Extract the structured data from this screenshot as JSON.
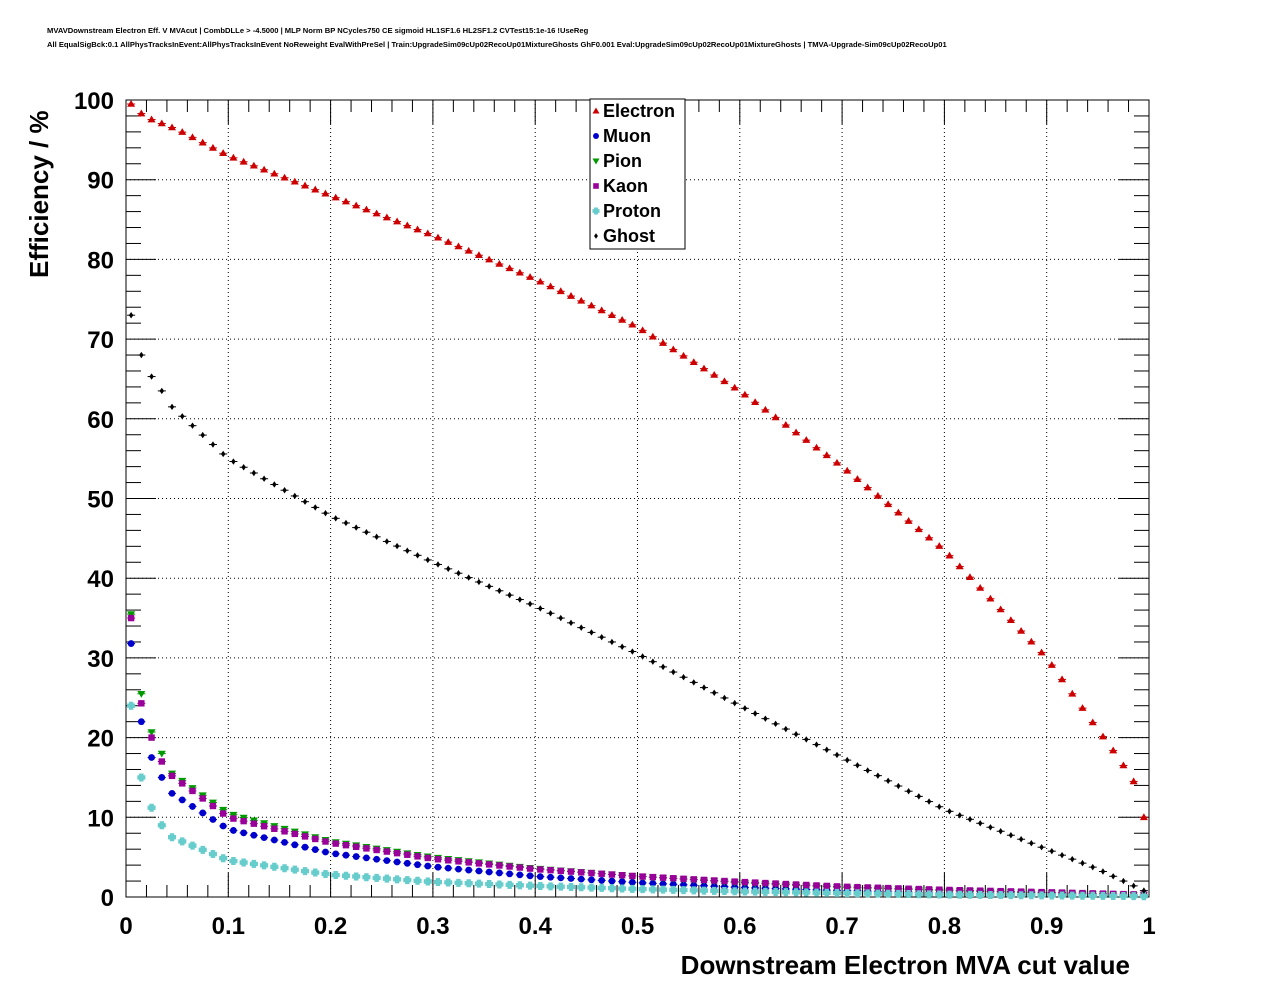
{
  "header": {
    "line1": "MVAVDownstream Electron Eff. V MVAcut | CombDLLe > -4.5000 | MLP Norm BP NCycles750 CE sigmoid HL1SF1.6 HL2SF1.2 CVTest15:1e-16 !UseReg",
    "line2": "All EqualSigBck:0.1 AllPhysTracksInEvent:AllPhysTracksInEvent NoReweight EvalWithPreSel | Train:UpgradeSim09cUp02RecoUp01MixtureGhosts GhF0.001 Eval:UpgradeSim09cUp02RecoUp01MixtureGhosts | TMVA-Upgrade-Sim09cUp02RecoUp01"
  },
  "chart_data": {
    "type": "scatter",
    "title": "MVAVDownstream Electron Eff. V MVAcut",
    "xlabel": "Downstream Electron MVA cut value",
    "ylabel": "Efficiency / %",
    "xlim": [
      0,
      1
    ],
    "ylim": [
      0,
      100
    ],
    "grid": true,
    "legend_position": "top-center",
    "x_ticks": [
      "0",
      "0.1",
      "0.2",
      "0.3",
      "0.4",
      "0.5",
      "0.6",
      "0.7",
      "0.8",
      "0.9",
      "1"
    ],
    "y_ticks": [
      "0",
      "10",
      "20",
      "30",
      "40",
      "50",
      "60",
      "70",
      "80",
      "90",
      "100"
    ],
    "bin_width": 0.01,
    "x_first": 0.005,
    "series": [
      {
        "name": "Electron",
        "color": "#cc0000",
        "marker": "triangle-up",
        "anchors": [
          [
            0.005,
            99.5
          ],
          [
            0.01,
            98.8
          ],
          [
            0.02,
            97.8
          ],
          [
            0.05,
            96.3
          ],
          [
            0.1,
            93.0
          ],
          [
            0.2,
            88.0
          ],
          [
            0.3,
            83.0
          ],
          [
            0.4,
            77.5
          ],
          [
            0.5,
            71.5
          ],
          [
            0.6,
            63.5
          ],
          [
            0.7,
            54.0
          ],
          [
            0.8,
            43.5
          ],
          [
            0.9,
            30.0
          ],
          [
            0.95,
            21.0
          ],
          [
            0.97,
            17.5
          ],
          [
            0.985,
            14.5
          ],
          [
            0.995,
            10.0
          ]
        ]
      },
      {
        "name": "Muon",
        "color": "#0000cc",
        "marker": "circle",
        "anchors": [
          [
            0.005,
            31.8
          ],
          [
            0.015,
            22.0
          ],
          [
            0.025,
            17.5
          ],
          [
            0.035,
            15.0
          ],
          [
            0.045,
            13.0
          ],
          [
            0.1,
            8.5
          ],
          [
            0.2,
            5.5
          ],
          [
            0.3,
            3.8
          ],
          [
            0.4,
            2.6
          ],
          [
            0.5,
            1.8
          ],
          [
            0.6,
            1.2
          ],
          [
            0.7,
            0.8
          ],
          [
            0.8,
            0.5
          ],
          [
            0.9,
            0.3
          ],
          [
            0.995,
            0.15
          ]
        ]
      },
      {
        "name": "Pion",
        "color": "#009900",
        "marker": "triangle-down",
        "anchors": [
          [
            0.005,
            35.5
          ],
          [
            0.015,
            25.5
          ],
          [
            0.025,
            20.7
          ],
          [
            0.035,
            18.0
          ],
          [
            0.045,
            15.5
          ],
          [
            0.1,
            10.5
          ],
          [
            0.2,
            7.0
          ],
          [
            0.3,
            5.0
          ],
          [
            0.4,
            3.6
          ],
          [
            0.5,
            2.6
          ],
          [
            0.6,
            1.8
          ],
          [
            0.7,
            1.2
          ],
          [
            0.8,
            0.8
          ],
          [
            0.9,
            0.5
          ],
          [
            0.995,
            0.25
          ]
        ]
      },
      {
        "name": "Kaon",
        "color": "#990099",
        "marker": "square",
        "anchors": [
          [
            0.005,
            35.0
          ],
          [
            0.015,
            24.3
          ],
          [
            0.025,
            20.0
          ],
          [
            0.035,
            17.0
          ],
          [
            0.045,
            15.2
          ],
          [
            0.1,
            10.0
          ],
          [
            0.2,
            6.8
          ],
          [
            0.3,
            4.8
          ],
          [
            0.4,
            3.5
          ],
          [
            0.5,
            2.6
          ],
          [
            0.6,
            1.9
          ],
          [
            0.7,
            1.3
          ],
          [
            0.8,
            0.9
          ],
          [
            0.9,
            0.6
          ],
          [
            0.995,
            0.3
          ]
        ]
      },
      {
        "name": "Proton",
        "color": "#66cccc",
        "marker": "cross",
        "anchors": [
          [
            0.005,
            24.0
          ],
          [
            0.015,
            15.0
          ],
          [
            0.025,
            11.2
          ],
          [
            0.035,
            9.0
          ],
          [
            0.045,
            7.5
          ],
          [
            0.1,
            4.6
          ],
          [
            0.2,
            2.8
          ],
          [
            0.3,
            1.9
          ],
          [
            0.4,
            1.4
          ],
          [
            0.5,
            1.0
          ],
          [
            0.6,
            0.7
          ],
          [
            0.7,
            0.5
          ],
          [
            0.8,
            0.3
          ],
          [
            0.9,
            0.2
          ],
          [
            0.995,
            0.1
          ]
        ]
      },
      {
        "name": "Ghost",
        "color": "#000000",
        "marker": "diamond",
        "anchors": [
          [
            0.005,
            73.0
          ],
          [
            0.015,
            68.0
          ],
          [
            0.025,
            65.3
          ],
          [
            0.035,
            63.5
          ],
          [
            0.045,
            61.5
          ],
          [
            0.1,
            55.0
          ],
          [
            0.2,
            47.8
          ],
          [
            0.3,
            42.0
          ],
          [
            0.4,
            36.5
          ],
          [
            0.5,
            30.5
          ],
          [
            0.6,
            24.0
          ],
          [
            0.7,
            17.5
          ],
          [
            0.8,
            11.0
          ],
          [
            0.9,
            6.0
          ],
          [
            0.95,
            3.5
          ],
          [
            0.975,
            2.0
          ],
          [
            0.995,
            0.8
          ]
        ]
      }
    ]
  }
}
